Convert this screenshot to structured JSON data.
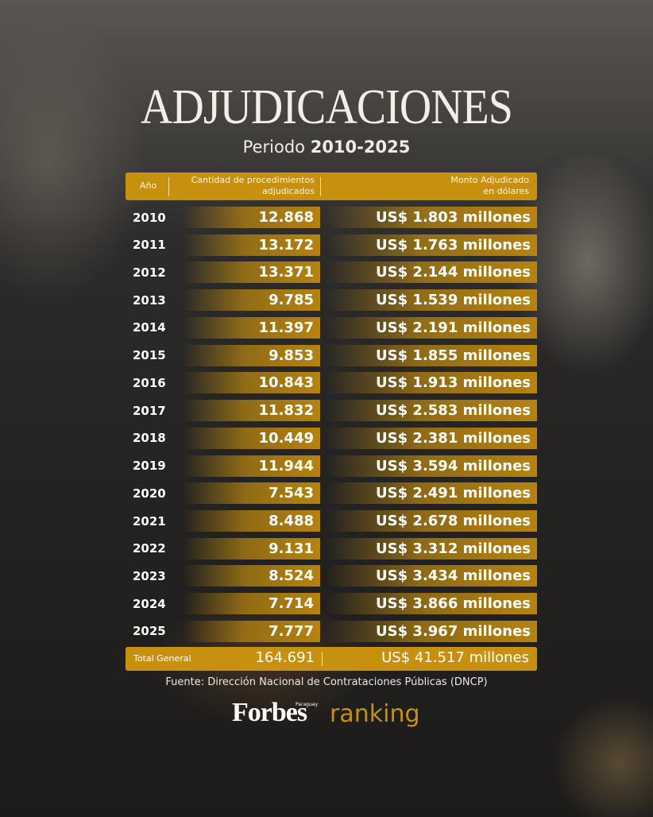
{
  "title": "ADJUDICACIONES",
  "subtitle": {
    "prefix": "Periodo",
    "period": "2010-2025"
  },
  "table": {
    "headers": [
      "Año",
      "Cantidad de procedimientos adjudicados",
      "Monto Adjudicado en dólares"
    ],
    "rows": [
      [
        "2010",
        "12.868",
        "US$ 1.803 millones"
      ],
      [
        "2011",
        "13.172",
        "US$ 1.763 millones"
      ],
      [
        "2012",
        "13.371",
        "US$ 2.144 millones"
      ],
      [
        "2013",
        "9.785",
        "US$ 1.539 millones"
      ],
      [
        "2014",
        "11.397",
        "US$ 2.191 millones"
      ],
      [
        "2015",
        "9.853",
        "US$ 1.855 millones"
      ],
      [
        "2016",
        "10.843",
        "US$ 1.913 millones"
      ],
      [
        "2017",
        "11.832",
        "US$ 2.583 millones"
      ],
      [
        "2018",
        "10.449",
        "US$ 2.381 millones"
      ],
      [
        "2019",
        "11.944",
        "US$ 3.594 millones"
      ],
      [
        "2020",
        "7.543",
        "US$ 2.491 millones"
      ],
      [
        "2021",
        "8.488",
        "US$ 2.678 millones"
      ],
      [
        "2022",
        "9.131",
        "US$ 3.312 millones"
      ],
      [
        "2023",
        "8.524",
        "US$ 3.434 millones"
      ],
      [
        "2024",
        "7.714",
        "US$ 3.866 millones"
      ],
      [
        "2025",
        "7.777",
        "US$ 3.967 millones"
      ]
    ],
    "total": [
      "Total General",
      "164.691",
      "US$ 41.517 millones"
    ]
  },
  "source": "Fuente: Dirección Nacional de Contrataciones Públicas (DNCP)",
  "logo": {
    "brand": "Forbes",
    "edition": "Paraguay",
    "section": "ranking"
  }
}
